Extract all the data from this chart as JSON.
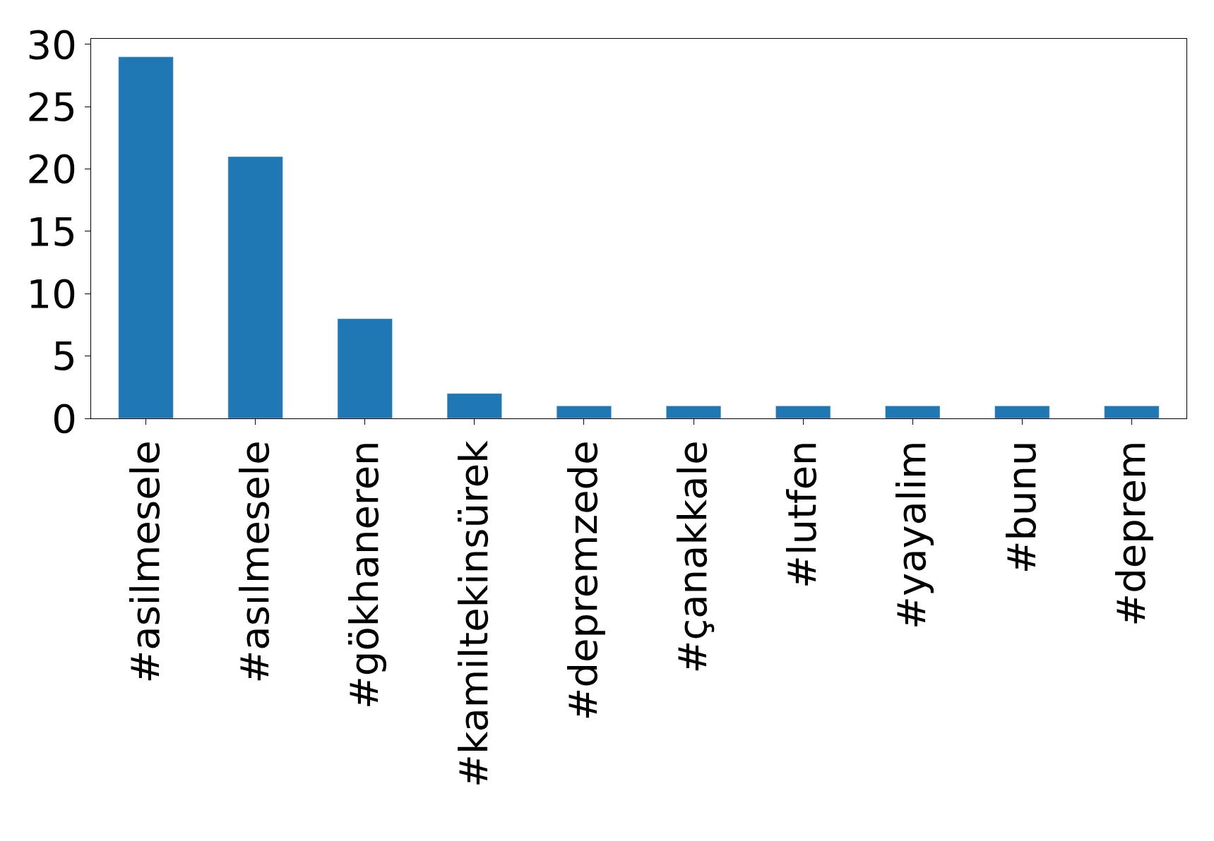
{
  "chart_data": {
    "type": "bar",
    "categories": [
      "#asilmesele",
      "#asılmesele",
      "#gökhaneren",
      "#kamiltekinsürek",
      "#depremzede",
      "#çanakkale",
      "#lutfen",
      "#yayalim",
      "#bunu",
      "#deprem"
    ],
    "values": [
      29,
      21,
      8,
      2,
      1,
      1,
      1,
      1,
      1,
      1
    ],
    "color": "#1f77b4",
    "ylim": [
      0,
      30.45
    ],
    "yticks": [
      0,
      5,
      10,
      15,
      20,
      25,
      30
    ]
  }
}
